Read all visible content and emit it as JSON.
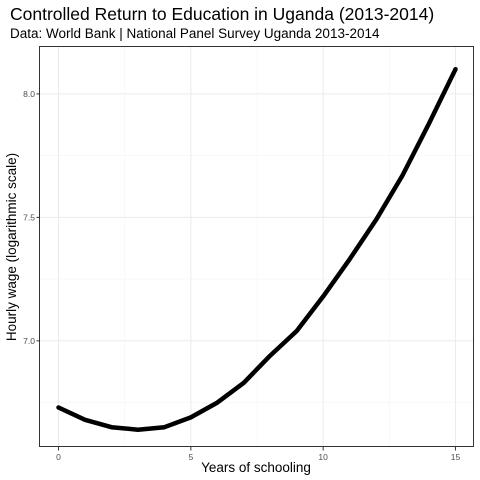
{
  "chart_data": {
    "type": "line",
    "title": "Controlled Return to Education in Uganda (2013-2014)",
    "subtitle": "Data: World Bank | National Panel Survey Uganda 2013-2014",
    "xlabel": "Years of schooling",
    "ylabel": "Hourly wage (logarithmic scale)",
    "xlim": [
      -0.7,
      15.7
    ],
    "ylim": [
      6.57,
      8.19
    ],
    "x_ticks": [
      0,
      5,
      10,
      15
    ],
    "x_tick_labels": [
      "0",
      "5",
      "10",
      "15"
    ],
    "y_ticks": [
      7.0,
      7.5,
      8.0
    ],
    "y_tick_labels": [
      "7.0",
      "7.5",
      "8.0"
    ],
    "grid": true,
    "legend": "none",
    "series": [
      {
        "color": "#000000",
        "x": [
          0,
          1,
          2,
          3,
          4,
          5,
          6,
          7,
          8,
          9,
          10,
          11,
          12,
          13,
          14,
          15
        ],
        "y": [
          6.73,
          6.68,
          6.65,
          6.64,
          6.65,
          6.69,
          6.75,
          6.83,
          6.94,
          7.04,
          7.18,
          7.33,
          7.49,
          7.67,
          7.88,
          8.1
        ]
      }
    ]
  }
}
